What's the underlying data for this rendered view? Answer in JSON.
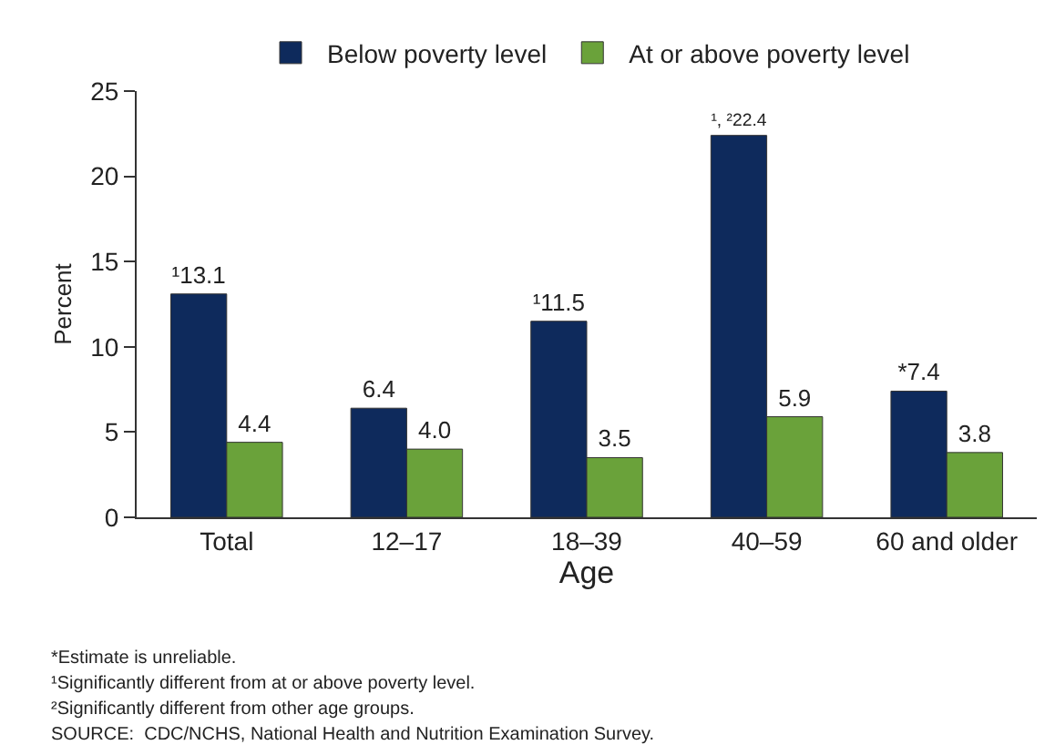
{
  "chart_data": {
    "type": "bar",
    "xlabel": "Age",
    "ylabel": "Percent",
    "categories": [
      "Total",
      "12–17",
      "18–39",
      "40–59",
      "60 and older"
    ],
    "series": [
      {
        "name": "Below poverty level",
        "color": "#0e2a5c",
        "values": [
          13.1,
          6.4,
          11.5,
          22.4,
          7.4
        ],
        "value_labels": [
          "¹13.1",
          "6.4",
          "¹11.5",
          "¹, ²22.4",
          "*7.4"
        ]
      },
      {
        "name": "At or above poverty level",
        "color": "#6aa23a",
        "values": [
          4.4,
          4.0,
          3.5,
          5.9,
          3.8
        ],
        "value_labels": [
          "4.4",
          "4.0",
          "3.5",
          "5.9",
          "3.8"
        ]
      }
    ],
    "ylim": [
      0,
      25
    ],
    "yticks": [
      0,
      5,
      10,
      15,
      20,
      25
    ],
    "grid": false,
    "legend": "top",
    "annotations": [
      "*Estimate is unreliable.",
      "¹Significantly different from at or above poverty level.",
      "²Significantly different from other age groups.",
      "SOURCE:  CDC/NCHS, National Health and Nutrition Examination Survey."
    ]
  }
}
